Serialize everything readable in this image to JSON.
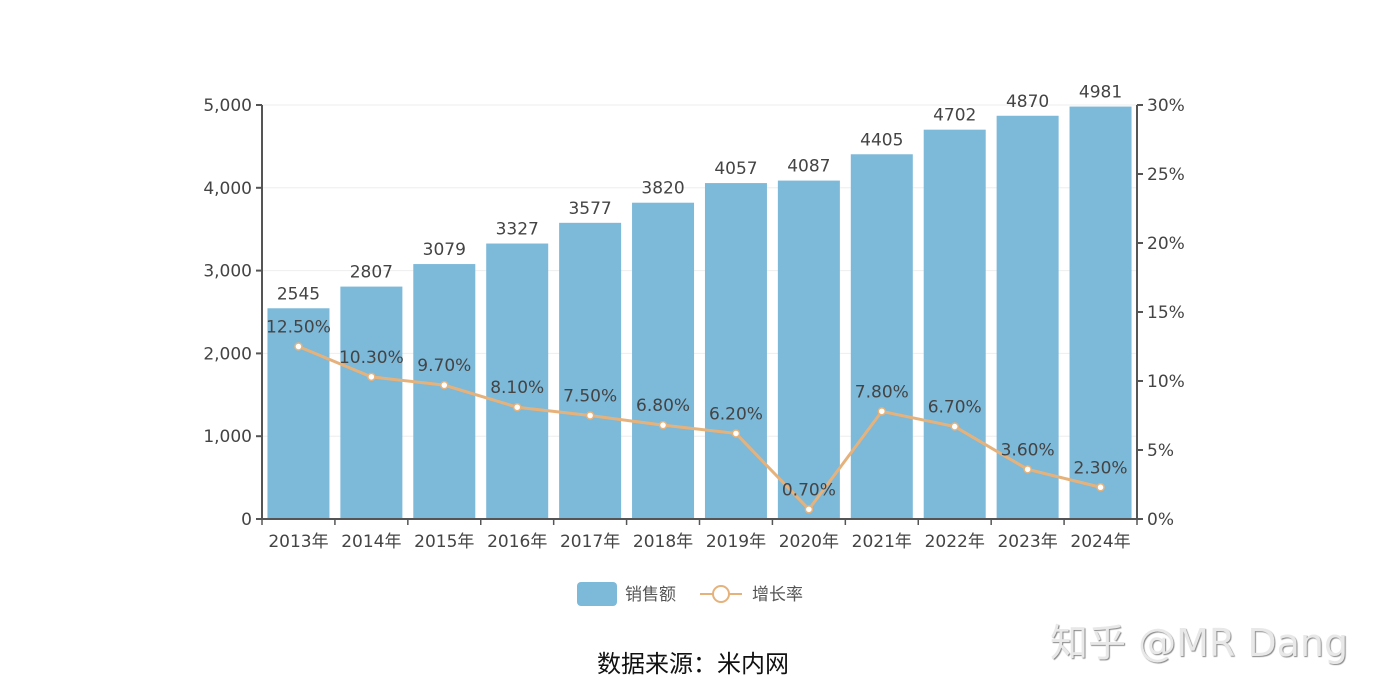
{
  "chart_data": {
    "type": "bar",
    "categories": [
      "2013年",
      "2014年",
      "2015年",
      "2016年",
      "2017年",
      "2018年",
      "2019年",
      "2020年",
      "2021年",
      "2022年",
      "2023年",
      "2024年"
    ],
    "series": [
      {
        "name": "销售额",
        "type": "bar",
        "axis": "left",
        "values": [
          2545,
          2807,
          3079,
          3327,
          3577,
          3820,
          4057,
          4087,
          4405,
          4702,
          4870,
          4981
        ],
        "color": "#7db9d9"
      },
      {
        "name": "增长率",
        "type": "line",
        "axis": "right",
        "values": [
          12.5,
          10.3,
          9.7,
          8.1,
          7.5,
          6.8,
          6.2,
          0.7,
          7.8,
          6.7,
          3.6,
          2.3
        ],
        "labels": [
          "12.50%",
          "10.30%",
          "9.70%",
          "8.10%",
          "7.50%",
          "6.80%",
          "6.20%",
          "0.70%",
          "7.80%",
          "6.70%",
          "3.60%",
          "2.30%"
        ],
        "color": "#e6b27c"
      }
    ],
    "y_left": {
      "range": [
        0,
        5000
      ],
      "ticks": [
        "0",
        "1,000",
        "2,000",
        "3,000",
        "4,000",
        "5,000"
      ]
    },
    "y_right": {
      "range": [
        0,
        30
      ],
      "ticks": [
        "0%",
        "5%",
        "10%",
        "15%",
        "20%",
        "25%",
        "30%"
      ]
    },
    "grid": true,
    "legend": "bottom"
  },
  "source": "数据来源：米内网",
  "watermark": "知乎 @MR Dang"
}
